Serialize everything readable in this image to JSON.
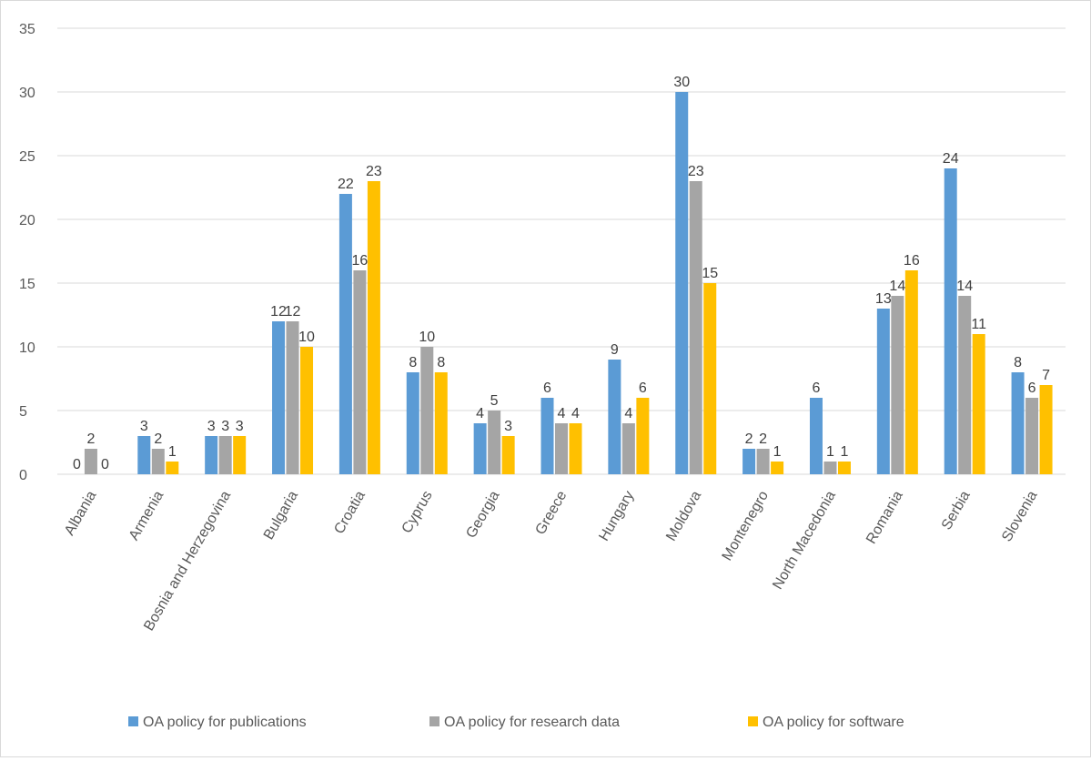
{
  "chart_data": {
    "type": "bar",
    "categories": [
      "Albania",
      "Armenia",
      "Bosnia and Herzegovina",
      "Bulgaria",
      "Croatia",
      "Cyprus",
      "Georgia",
      "Greece",
      "Hungary",
      "Moldova",
      "Montenegro",
      "North Macedonia",
      "Romania",
      "Serbia",
      "Slovenia"
    ],
    "series": [
      {
        "name": "OA policy for publications",
        "color": "#5b9bd5",
        "values": [
          0,
          3,
          3,
          12,
          22,
          8,
          4,
          6,
          9,
          30,
          2,
          6,
          13,
          24,
          8
        ]
      },
      {
        "name": "OA policy for research data",
        "color": "#a5a5a5",
        "values": [
          2,
          2,
          3,
          12,
          16,
          10,
          5,
          4,
          4,
          23,
          2,
          1,
          14,
          14,
          6
        ]
      },
      {
        "name": "OA policy for software",
        "color": "#ffc000",
        "values": [
          0,
          1,
          3,
          10,
          23,
          8,
          3,
          4,
          6,
          15,
          1,
          1,
          16,
          11,
          7
        ]
      }
    ],
    "ylim": [
      0,
      35
    ],
    "yticks": [
      0,
      5,
      10,
      15,
      20,
      25,
      30,
      35
    ],
    "grid": true,
    "legend": "bottom",
    "data_labels": true,
    "title": "",
    "xlabel": "",
    "ylabel": ""
  }
}
